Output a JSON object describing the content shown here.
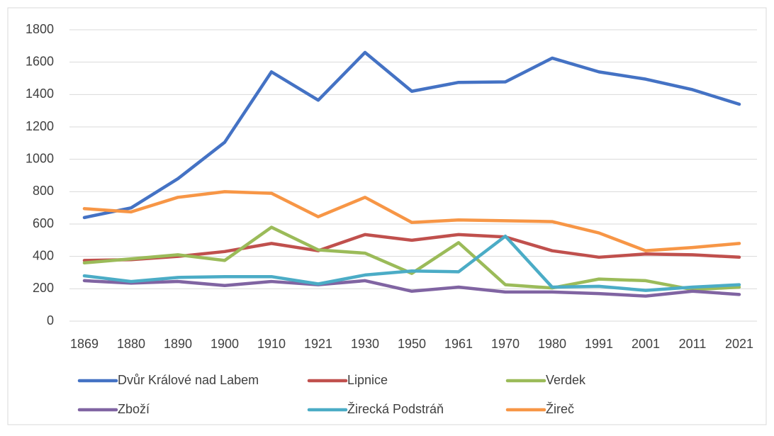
{
  "chart_data": {
    "type": "line",
    "categories": [
      "1869",
      "1880",
      "1890",
      "1900",
      "1910",
      "1921",
      "1930",
      "1950",
      "1961",
      "1970",
      "1980",
      "1991",
      "2001",
      "2011",
      "2021"
    ],
    "series": [
      {
        "name": "Dvůr Králové nad Labem",
        "color": "#4472c4",
        "values": [
          640,
          700,
          880,
          1105,
          1540,
          1365,
          1660,
          1420,
          1475,
          1478,
          1625,
          1540,
          1495,
          1430,
          1340
        ]
      },
      {
        "name": "Lipnice",
        "color": "#c0504d",
        "values": [
          375,
          380,
          400,
          430,
          480,
          435,
          535,
          500,
          535,
          520,
          435,
          395,
          415,
          410,
          395
        ]
      },
      {
        "name": "Verdek",
        "color": "#9bbb59",
        "values": [
          360,
          385,
          410,
          375,
          580,
          440,
          420,
          295,
          485,
          225,
          205,
          260,
          250,
          195,
          210
        ]
      },
      {
        "name": "Zboží",
        "color": "#8064a2",
        "values": [
          250,
          235,
          245,
          220,
          245,
          225,
          250,
          185,
          210,
          180,
          180,
          170,
          155,
          185,
          165
        ]
      },
      {
        "name": "Žirecká Podstráň",
        "color": "#4bacc6",
        "values": [
          280,
          245,
          270,
          275,
          275,
          230,
          285,
          310,
          305,
          525,
          210,
          215,
          190,
          210,
          225
        ]
      },
      {
        "name": "Žireč",
        "color": "#f79646",
        "values": [
          695,
          675,
          765,
          800,
          790,
          645,
          765,
          610,
          625,
          620,
          615,
          545,
          435,
          455,
          480
        ]
      }
    ],
    "ylim": [
      0,
      1800
    ],
    "yticks": [
      0,
      200,
      400,
      600,
      800,
      1000,
      1200,
      1400,
      1600,
      1800
    ],
    "grid": true
  }
}
